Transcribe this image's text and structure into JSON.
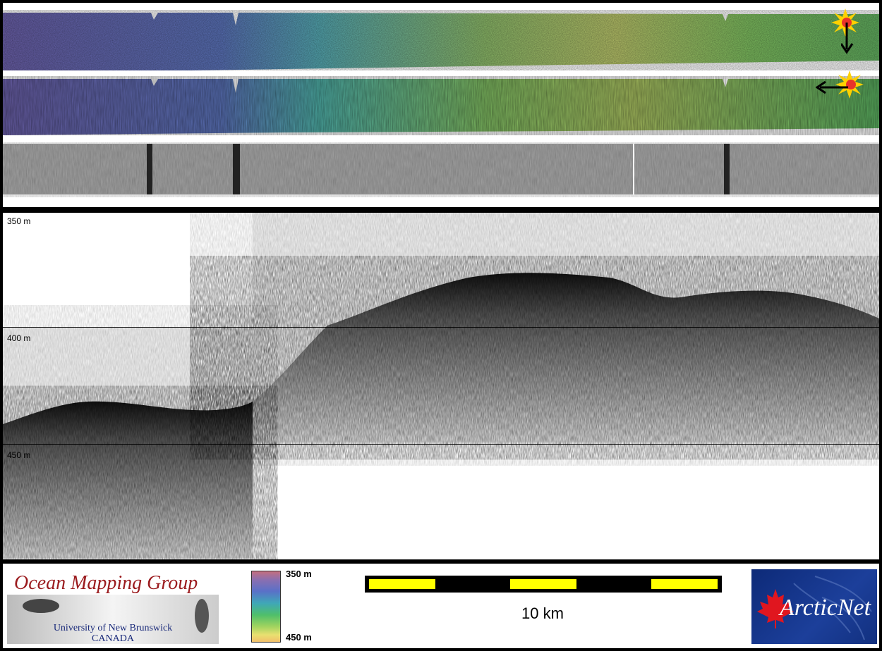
{
  "depth_labels": [
    "350 m",
    "400 m",
    "450 m"
  ],
  "footer": {
    "omg_title": "Ocean Mapping Group",
    "omg_sub1": "University of New Brunswick",
    "omg_sub2": "CANADA",
    "colorbar_top": "350 m",
    "colorbar_bottom": "450 m",
    "scale_label": "10 km",
    "arctic_logo": "ArcticNet"
  },
  "colors": {
    "scale_bar": "#ffff00",
    "omg_title": "#9b1b1e",
    "arctic_bg": "#1c3f9a"
  },
  "icons": [
    "sun-illumination-icon",
    "arrow-down-icon",
    "arrow-left-icon",
    "maple-leaf-icon"
  ]
}
